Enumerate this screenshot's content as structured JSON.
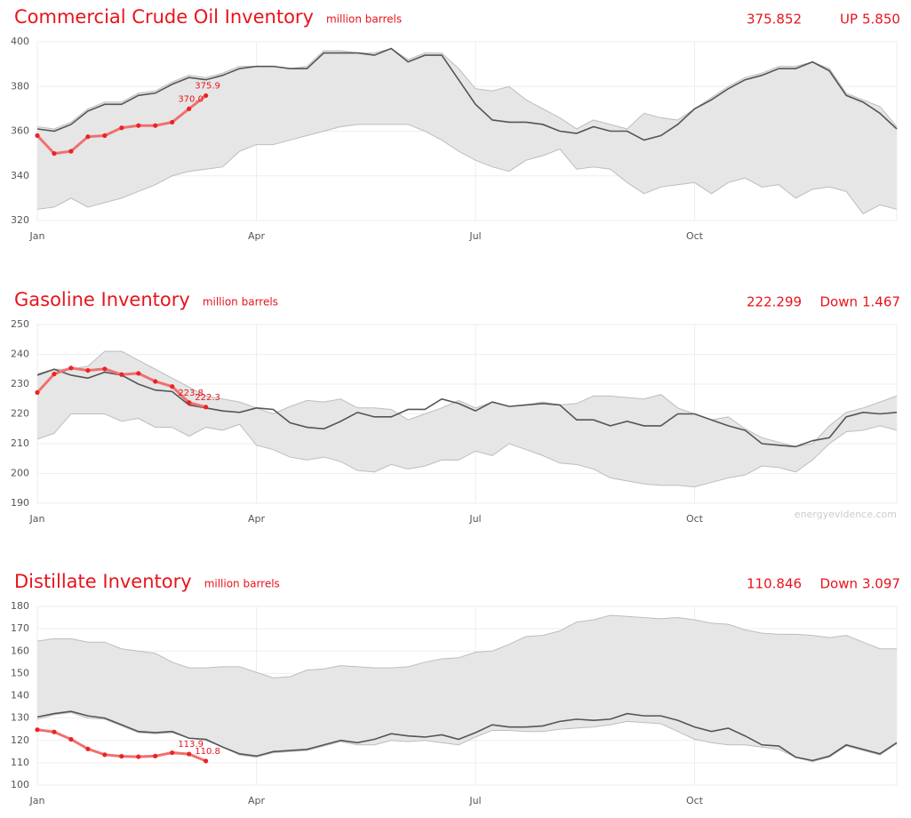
{
  "chart_data": [
    {
      "type": "line",
      "title": "Commercial Crude Oil Inventory",
      "unit": "million barrels",
      "latest": "375.852",
      "direction": "UP",
      "change": "5.850",
      "xlim": [
        0,
        51
      ],
      "xticks": [
        {
          "value": 0,
          "label": "Jan"
        },
        {
          "value": 13,
          "label": "Apr"
        },
        {
          "value": 26,
          "label": "Jul"
        },
        {
          "value": 39,
          "label": "Oct"
        }
      ],
      "ylim": [
        320,
        400
      ],
      "yticks": [
        320,
        340,
        360,
        380,
        400
      ],
      "grid": true,
      "series": [
        {
          "color": "#bdbdbd",
          "fill": "#e6e6e6",
          "values": [
            362,
            361,
            364,
            370,
            373,
            373,
            377,
            378,
            382,
            385,
            384,
            386,
            389,
            389,
            389,
            388,
            389,
            396,
            396,
            395,
            395,
            397,
            392,
            395,
            395,
            388,
            379,
            378,
            380,
            374,
            370,
            366,
            361,
            365,
            363,
            361,
            368,
            366,
            365,
            370,
            375,
            380,
            384,
            386,
            389,
            389,
            391,
            388,
            377,
            374,
            371,
            362
          ]
        },
        {
          "color": "#bdbdbd",
          "values": [
            325,
            326,
            330,
            326,
            328,
            330,
            333,
            336,
            340,
            342,
            343,
            344,
            351,
            354,
            354,
            356,
            358,
            360,
            362,
            363,
            363,
            363,
            363,
            360,
            356,
            351,
            347,
            344,
            342,
            347,
            349,
            352,
            343,
            344,
            343,
            337,
            332,
            335,
            336,
            337,
            332,
            337,
            339,
            335,
            336,
            330,
            334,
            335,
            333,
            323,
            327,
            325
          ]
        },
        {
          "color": "#555555",
          "values": [
            361,
            360,
            363,
            369,
            372,
            372,
            376,
            377,
            381,
            384,
            383,
            385,
            388,
            389,
            389,
            388,
            388,
            395,
            395,
            395,
            394,
            397,
            391,
            394,
            394,
            383,
            372,
            365,
            364,
            364,
            363,
            360,
            359,
            362,
            360,
            360,
            356,
            358,
            363,
            370,
            374,
            379,
            383,
            385,
            388,
            388,
            391,
            387,
            376,
            373,
            368,
            361
          ]
        },
        {
          "color": "#ee2222",
          "line_color": "#f07070",
          "values": [
            358,
            350,
            351,
            357.5,
            358,
            361.5,
            362.5,
            362.5,
            364,
            370,
            375.9
          ],
          "value_labels": [
            null,
            null,
            null,
            null,
            null,
            null,
            null,
            null,
            null,
            "370.0",
            "375.9"
          ]
        }
      ]
    },
    {
      "type": "line",
      "title": "Gasoline Inventory",
      "unit": "million barrels",
      "latest": "222.299",
      "direction": "Down",
      "change": "1.467",
      "source": "energyevidence.com",
      "xlim": [
        0,
        51
      ],
      "xticks": [
        {
          "value": 0,
          "label": "Jan"
        },
        {
          "value": 13,
          "label": "Apr"
        },
        {
          "value": 26,
          "label": "Jul"
        },
        {
          "value": 39,
          "label": "Oct"
        }
      ],
      "ylim": [
        190,
        250
      ],
      "yticks": [
        190,
        200,
        210,
        220,
        230,
        240,
        250
      ],
      "grid": true,
      "series": [
        {
          "color": "#bdbdbd",
          "fill": "#e6e6e6",
          "values": [
            233.5,
            235,
            235,
            236,
            241,
            241,
            238,
            235,
            232,
            229,
            226,
            225,
            224,
            222,
            220,
            222.5,
            224.5,
            224,
            225,
            222,
            222,
            221.5,
            218,
            220,
            222,
            224.5,
            222,
            224,
            222.5,
            223,
            224,
            223,
            223.5,
            226,
            226,
            225.5,
            225,
            226.5,
            222,
            220,
            218,
            219,
            215,
            212,
            210.5,
            209,
            210,
            216,
            220.5,
            222,
            224,
            226
          ]
        },
        {
          "color": "#bdbdbd",
          "values": [
            211.5,
            213.5,
            220,
            220,
            220,
            217.5,
            218.5,
            215.5,
            215.5,
            212.5,
            215.5,
            214.5,
            216.5,
            209.5,
            208,
            205.5,
            204.5,
            205.5,
            204,
            201,
            200.5,
            203,
            201.5,
            202.5,
            204.5,
            204.5,
            207.5,
            206,
            210,
            208,
            206,
            203.5,
            203,
            201.5,
            198.5,
            197.5,
            196.5,
            196,
            196,
            195.5,
            197,
            198.5,
            199.5,
            202.5,
            202,
            200.5,
            204.5,
            210,
            214,
            214.5,
            216,
            214.5
          ]
        },
        {
          "color": "#555555",
          "values": [
            233,
            235,
            233,
            232,
            234,
            233,
            230,
            228,
            227.5,
            223,
            222,
            221,
            220.5,
            222,
            221.5,
            217,
            215.5,
            215,
            217.5,
            220.5,
            219,
            219,
            221.5,
            221.5,
            225,
            223.5,
            221,
            224,
            222.5,
            223,
            223.5,
            223,
            218,
            218,
            216,
            217.5,
            216,
            216,
            220,
            220,
            218,
            216,
            214.5,
            210,
            209.5,
            209,
            211,
            212,
            219,
            220.5,
            220,
            220.5
          ]
        },
        {
          "color": "#ee2222",
          "line_color": "#f07070",
          "values": [
            227.2,
            233.4,
            235.4,
            234.6,
            235.1,
            233.2,
            233.6,
            230.9,
            229.2,
            223.8,
            222.3
          ],
          "value_labels": [
            null,
            null,
            null,
            null,
            null,
            null,
            null,
            null,
            null,
            "223.8",
            "222.3"
          ]
        }
      ]
    },
    {
      "type": "line",
      "title": "Distillate Inventory",
      "unit": "million barrels",
      "latest": "110.846",
      "direction": "Down",
      "change": "3.097",
      "xlim": [
        0,
        51
      ],
      "xticks": [
        {
          "value": 0,
          "label": "Jan"
        },
        {
          "value": 13,
          "label": "Apr"
        },
        {
          "value": 26,
          "label": "Jul"
        },
        {
          "value": 39,
          "label": "Oct"
        }
      ],
      "ylim": [
        100,
        180
      ],
      "yticks": [
        100,
        110,
        120,
        130,
        140,
        150,
        160,
        170,
        180
      ],
      "grid": true,
      "series": [
        {
          "color": "#bdbdbd",
          "fill": "#e6e6e6",
          "values": [
            164.5,
            165.5,
            165.5,
            164,
            164,
            161,
            160,
            159,
            155,
            152.5,
            152.5,
            153,
            153,
            150.5,
            148,
            148.5,
            151.5,
            152,
            153.5,
            153,
            152.5,
            152.5,
            153,
            155,
            156.5,
            157,
            159.5,
            160,
            163,
            166.5,
            167,
            169,
            173,
            174,
            176,
            175.5,
            175,
            174.5,
            175,
            174,
            172.5,
            172,
            169.5,
            168,
            167.5,
            167.5,
            167,
            166,
            167,
            164,
            161,
            161
          ]
        },
        {
          "color": "#bdbdbd",
          "values": [
            129.5,
            131.5,
            132.5,
            130,
            129.5,
            126.5,
            123.5,
            123,
            123.5,
            121,
            120,
            117,
            113.5,
            112.5,
            114.5,
            115,
            115.5,
            117.5,
            119.5,
            118,
            118,
            120,
            119.5,
            120,
            119,
            118,
            121.5,
            124.5,
            124.5,
            124,
            124,
            125,
            125.5,
            126,
            127,
            128.5,
            128,
            127.5,
            124,
            120.5,
            119,
            118,
            118,
            117,
            116,
            112.5,
            110.5,
            112.5,
            117.5,
            115.5,
            113.5,
            118.5
          ]
        },
        {
          "color": "#555555",
          "values": [
            130.5,
            132,
            133,
            131,
            130,
            127,
            124,
            123.5,
            124,
            121,
            120.5,
            117,
            114,
            113,
            115,
            115.5,
            116,
            118,
            120,
            119,
            120.5,
            123,
            122,
            121.5,
            122.5,
            120.5,
            123.5,
            127,
            126,
            126,
            126.5,
            128.5,
            129.5,
            129,
            129.5,
            132,
            131,
            131,
            129,
            126,
            124,
            125.5,
            122,
            118,
            117.5,
            112.5,
            111,
            113,
            118,
            116,
            114,
            119
          ]
        },
        {
          "color": "#ee2222",
          "line_color": "#f07070",
          "values": [
            124.8,
            123.8,
            120.5,
            116.2,
            113.6,
            112.9,
            112.7,
            113,
            114.5,
            113.9,
            110.8
          ],
          "value_labels": [
            null,
            null,
            null,
            null,
            null,
            null,
            null,
            null,
            null,
            "113.9",
            "110.8"
          ]
        }
      ]
    }
  ]
}
